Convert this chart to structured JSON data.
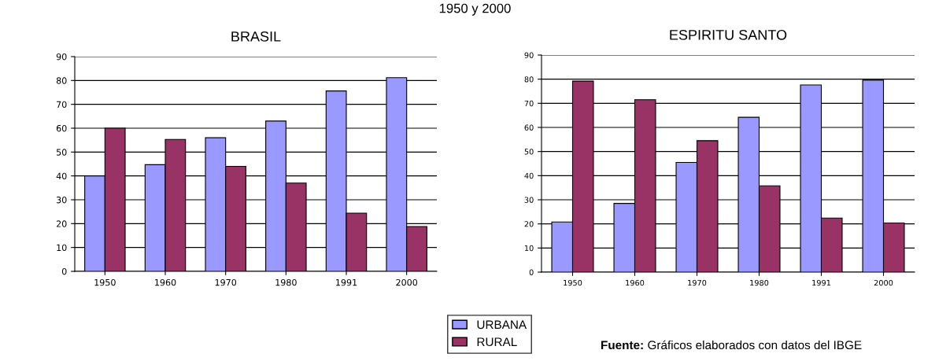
{
  "chart_data": [
    {
      "type": "bar",
      "title": "BRASIL",
      "categories": [
        "1950",
        "1960",
        "1970",
        "1980",
        "1991",
        "2000"
      ],
      "series": [
        {
          "name": "URBANA",
          "color": "#9999ff",
          "values": [
            40,
            44.7,
            56,
            63,
            75.6,
            81.2
          ]
        },
        {
          "name": "RURAL",
          "color": "#993366",
          "values": [
            60,
            55.3,
            44,
            37,
            24.4,
            18.8
          ]
        }
      ],
      "ylim": [
        0,
        90
      ],
      "yticks": [
        0,
        10,
        20,
        30,
        40,
        50,
        60,
        70,
        80,
        90
      ],
      "grid": "y",
      "legend": "bottom",
      "annotations": [
        "1950 y 2000"
      ]
    },
    {
      "type": "bar",
      "title": "ESPIRITU SANTO",
      "categories": [
        "1950",
        "1960",
        "1970",
        "1980",
        "1991",
        "2000"
      ],
      "series": [
        {
          "color": "#9999ff",
          "values": [
            20.8,
            28.5,
            45.5,
            64.2,
            77.6,
            79.6
          ]
        },
        {
          "color": "#993366",
          "values": [
            79.2,
            71.5,
            54.5,
            35.8,
            22.4,
            20.4
          ]
        }
      ],
      "ylim": [
        0,
        90
      ],
      "yticks": [
        0,
        10,
        20,
        30,
        40,
        50,
        60,
        70,
        80,
        90
      ],
      "grid": "y",
      "annotations": [
        "Fuente: Gráficos elaborados con datos del IBGE"
      ]
    }
  ]
}
